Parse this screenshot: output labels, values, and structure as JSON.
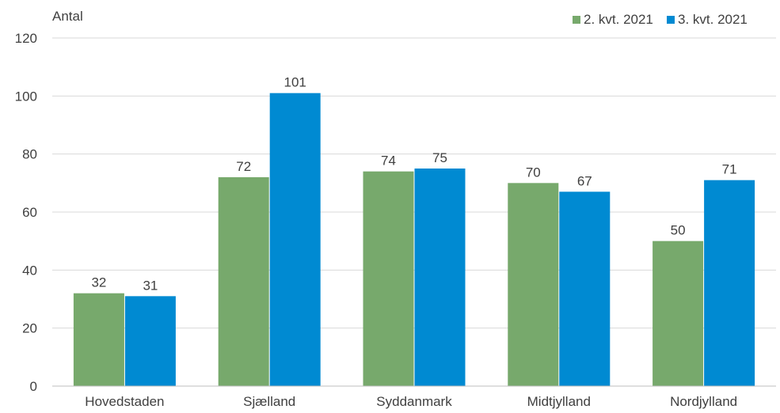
{
  "chart_data": {
    "type": "bar",
    "ylabel": "Antal",
    "ylim": [
      0,
      120
    ],
    "yticks": [
      0,
      20,
      40,
      60,
      80,
      100,
      120
    ],
    "grid": true,
    "legend_position": "top-right",
    "categories": [
      "Hovedstaden",
      "Sjælland",
      "Syddanmark",
      "Midtjylland",
      "Nordjylland"
    ],
    "series": [
      {
        "name": "2. kvt. 2021",
        "color": "#77a96c",
        "values": [
          32,
          72,
          74,
          70,
          50
        ]
      },
      {
        "name": "3. kvt. 2021",
        "color": "#008ad2",
        "values": [
          31,
          101,
          75,
          67,
          71
        ]
      }
    ]
  }
}
